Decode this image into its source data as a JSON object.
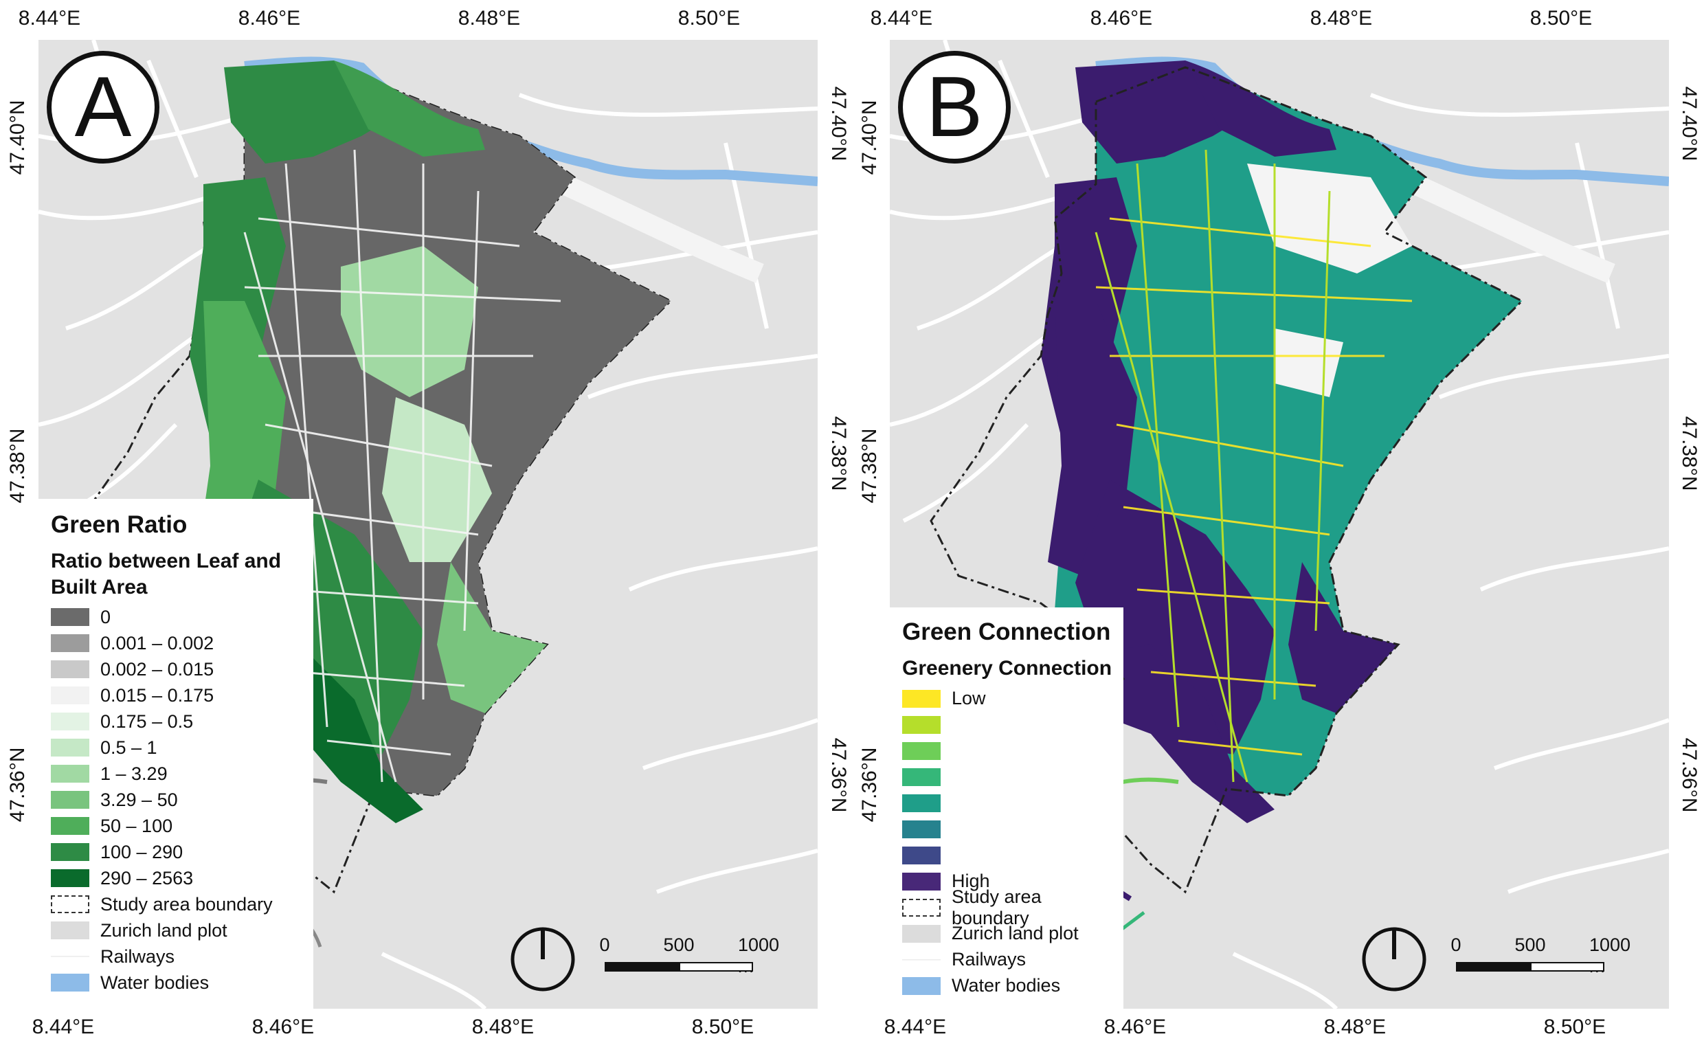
{
  "axes": {
    "lon_ticks": [
      "8.44°E",
      "8.46°E",
      "8.48°E",
      "8.50°E"
    ],
    "lat_ticks": [
      "47.40°N",
      "47.38°N",
      "47.36°N"
    ]
  },
  "panel_a": {
    "badge": "A",
    "legend": {
      "title": "Green Ratio",
      "subtitle": "Ratio between Leaf and Built Area",
      "classes": [
        {
          "label": "0",
          "color": "#6b6b6b"
        },
        {
          "label": "0.001 – 0.002",
          "color": "#9c9c9c"
        },
        {
          "label": "0.002 – 0.015",
          "color": "#c9c9c9"
        },
        {
          "label": "0.015 – 0.175",
          "color": "#f2f2f2"
        },
        {
          "label": "0.175 – 0.5",
          "color": "#e3f3e4"
        },
        {
          "label": "0.5 – 1",
          "color": "#c5e8c6"
        },
        {
          "label": "1 – 3.29",
          "color": "#a1d9a3"
        },
        {
          "label": "3.29 – 50",
          "color": "#79c47e"
        },
        {
          "label": "50 – 100",
          "color": "#4fae5a"
        },
        {
          "label": "100 – 290",
          "color": "#2e8b45"
        },
        {
          "label": "290 – 2563",
          "color": "#0a6b2c"
        }
      ],
      "extras": [
        {
          "label": "Study area boundary",
          "kind": "dash"
        },
        {
          "label": "Zurich land plot",
          "kind": "fill",
          "color": "#dcdcdc"
        },
        {
          "label": "Railways",
          "kind": "line"
        },
        {
          "label": "Water bodies",
          "kind": "fill",
          "color": "#8dbbe8"
        }
      ]
    },
    "scalebar": {
      "labels": [
        "0",
        "500",
        "1000 m"
      ]
    }
  },
  "panel_b": {
    "badge": "B",
    "legend": {
      "title": "Green Connection",
      "subtitle": "Greenery Connection",
      "classes": [
        {
          "label": "Low",
          "color": "#fde725"
        },
        {
          "label": "",
          "color": "#b5de2b"
        },
        {
          "label": "",
          "color": "#6ece58"
        },
        {
          "label": "",
          "color": "#35b779"
        },
        {
          "label": "",
          "color": "#1f9e89"
        },
        {
          "label": "",
          "color": "#26828e"
        },
        {
          "label": "",
          "color": "#3e4989"
        },
        {
          "label": "High",
          "color": "#482878"
        }
      ],
      "extras": [
        {
          "label": "Study area boundary",
          "kind": "dash"
        },
        {
          "label": "Zurich land plot",
          "kind": "fill",
          "color": "#dcdcdc"
        },
        {
          "label": "Railways",
          "kind": "line"
        },
        {
          "label": "Water bodies",
          "kind": "fill",
          "color": "#8dbbe8"
        }
      ]
    },
    "scalebar": {
      "labels": [
        "0",
        "500",
        "1000 m"
      ]
    }
  },
  "colors": {
    "land": "#e2e2e2",
    "water": "#8dbbe8",
    "boundary": "#222222"
  }
}
